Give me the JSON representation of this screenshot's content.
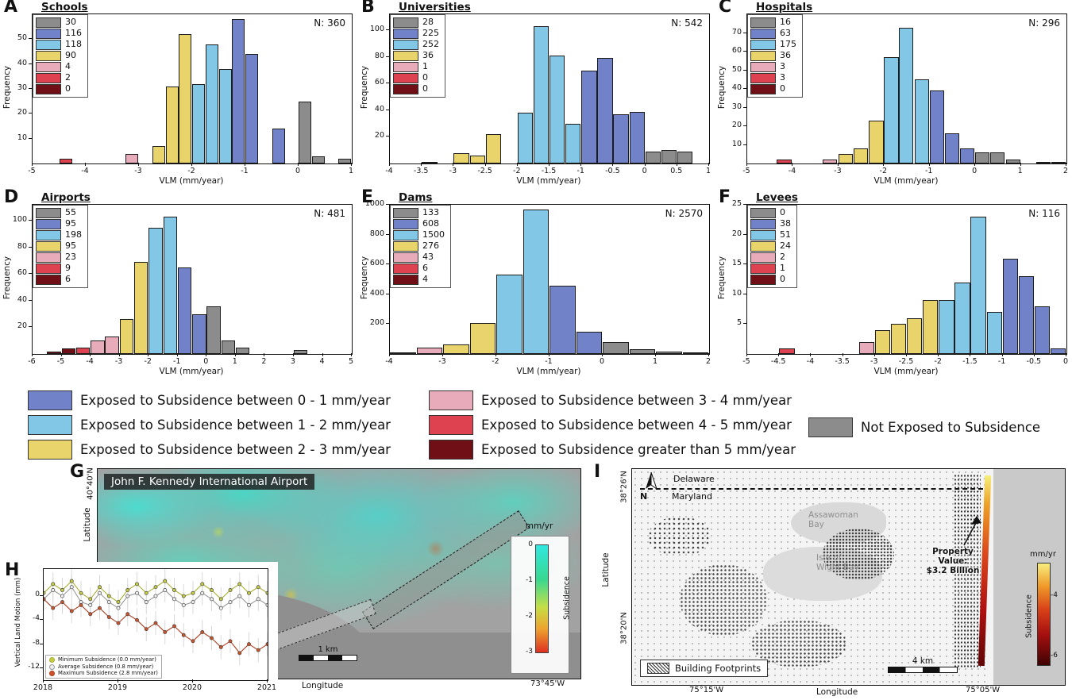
{
  "colors": {
    "gray": "#8c8c8c",
    "blue": "#7182c8",
    "lightblue": "#82c8e6",
    "yellow": "#e9d46c",
    "pink": "#e7abb9",
    "red": "#de4150",
    "darkred": "#701016"
  },
  "chart_data": [
    {
      "type": "bar",
      "panel": "A",
      "title": "Schools",
      "n_label": "N: 360",
      "xlabel": "VLM (mm/year)",
      "ylabel": "Frequency",
      "xlim": [
        -5,
        1
      ],
      "xticks": [
        -5,
        -4,
        -3,
        -2,
        -1,
        0,
        1
      ],
      "ymax": 60,
      "yticks": [
        10,
        20,
        30,
        40,
        50
      ],
      "bin_width": 0.25,
      "legend_counts": [
        [
          "gray",
          "30"
        ],
        [
          "blue",
          "116"
        ],
        [
          "lightblue",
          "118"
        ],
        [
          "yellow",
          "90"
        ],
        [
          "pink",
          "4"
        ],
        [
          "red",
          "2"
        ],
        [
          "darkred",
          "0"
        ]
      ],
      "bars": [
        [
          -4.5,
          2,
          "red"
        ],
        [
          -3.25,
          4,
          "pink"
        ],
        [
          -2.75,
          7,
          "yellow"
        ],
        [
          -2.5,
          31,
          "yellow"
        ],
        [
          -2.25,
          52,
          "yellow"
        ],
        [
          -2,
          32,
          "lightblue"
        ],
        [
          -1.75,
          48,
          "lightblue"
        ],
        [
          -1.5,
          38,
          "lightblue"
        ],
        [
          -1.25,
          58,
          "blue"
        ],
        [
          -1,
          44,
          "blue"
        ],
        [
          -0.5,
          14,
          "blue"
        ],
        [
          0,
          25,
          "gray"
        ],
        [
          0.25,
          3,
          "gray"
        ],
        [
          0.75,
          2,
          "gray"
        ]
      ]
    },
    {
      "type": "bar",
      "panel": "B",
      "title": "Universities",
      "n_label": "N: 542",
      "xlabel": "VLM (mm/year)",
      "ylabel": "Frequency",
      "xlim": [
        -4,
        1
      ],
      "xticks": [
        -4,
        -3.5,
        -3,
        -2.5,
        -2,
        -1.5,
        -1,
        -0.5,
        0,
        0.5,
        1
      ],
      "ymax": 112,
      "yticks": [
        20,
        40,
        60,
        80,
        100
      ],
      "bin_width": 0.25,
      "legend_counts": [
        [
          "gray",
          "28"
        ],
        [
          "blue",
          "225"
        ],
        [
          "lightblue",
          "252"
        ],
        [
          "yellow",
          "36"
        ],
        [
          "pink",
          "1"
        ],
        [
          "red",
          "0"
        ],
        [
          "darkred",
          "0"
        ]
      ],
      "bars": [
        [
          -3.5,
          1,
          "pink"
        ],
        [
          -3,
          8,
          "yellow"
        ],
        [
          -2.75,
          6,
          "yellow"
        ],
        [
          -2.5,
          22,
          "yellow"
        ],
        [
          -2,
          38,
          "lightblue"
        ],
        [
          -1.75,
          103,
          "lightblue"
        ],
        [
          -1.5,
          81,
          "lightblue"
        ],
        [
          -1.25,
          30,
          "lightblue"
        ],
        [
          -1,
          70,
          "blue"
        ],
        [
          -0.75,
          79,
          "blue"
        ],
        [
          -0.5,
          37,
          "blue"
        ],
        [
          -0.25,
          39,
          "blue"
        ],
        [
          0,
          9,
          "gray"
        ],
        [
          0.25,
          10,
          "gray"
        ],
        [
          0.5,
          9,
          "gray"
        ]
      ]
    },
    {
      "type": "bar",
      "panel": "C",
      "title": "Hospitals",
      "n_label": "N: 296",
      "xlabel": "VLM (mm/year)",
      "ylabel": "Frequency",
      "xlim": [
        -5,
        2
      ],
      "xticks": [
        -5,
        -4,
        -3,
        -2,
        -1,
        0,
        1,
        2
      ],
      "ymax": 80,
      "yticks": [
        10,
        20,
        30,
        40,
        50,
        60,
        70
      ],
      "bin_width": 0.33,
      "legend_counts": [
        [
          "gray",
          "16"
        ],
        [
          "blue",
          "63"
        ],
        [
          "lightblue",
          "175"
        ],
        [
          "yellow",
          "36"
        ],
        [
          "pink",
          "3"
        ],
        [
          "red",
          "3"
        ],
        [
          "darkred",
          "0"
        ]
      ],
      "bars": [
        [
          -4.35,
          2,
          "red"
        ],
        [
          -3.35,
          2,
          "pink"
        ],
        [
          -3,
          5,
          "yellow"
        ],
        [
          -2.67,
          8,
          "yellow"
        ],
        [
          -2.33,
          23,
          "yellow"
        ],
        [
          -2,
          57,
          "lightblue"
        ],
        [
          -1.67,
          73,
          "lightblue"
        ],
        [
          -1.33,
          45,
          "lightblue"
        ],
        [
          -1,
          39,
          "blue"
        ],
        [
          -0.67,
          16,
          "blue"
        ],
        [
          -0.33,
          8,
          "blue"
        ],
        [
          0,
          6,
          "gray"
        ],
        [
          0.33,
          6,
          "gray"
        ],
        [
          0.67,
          2,
          "gray"
        ],
        [
          1.33,
          1,
          "gray"
        ],
        [
          1.67,
          1,
          "gray"
        ]
      ]
    },
    {
      "type": "bar",
      "panel": "D",
      "title": "Airports",
      "n_label": "N: 481",
      "xlabel": "VLM (mm/year)",
      "ylabel": "Frequency",
      "xlim": [
        -6,
        5
      ],
      "xticks": [
        -6,
        -5,
        -4,
        -3,
        -2,
        -1,
        0,
        1,
        2,
        3,
        4,
        5
      ],
      "ymax": 112,
      "yticks": [
        20,
        40,
        60,
        80,
        100
      ],
      "bin_width": 0.5,
      "legend_counts": [
        [
          "gray",
          "55"
        ],
        [
          "blue",
          "95"
        ],
        [
          "lightblue",
          "198"
        ],
        [
          "yellow",
          "95"
        ],
        [
          "pink",
          "23"
        ],
        [
          "red",
          "9"
        ],
        [
          "darkred",
          "6"
        ]
      ],
      "bars": [
        [
          -5.5,
          2,
          "darkred"
        ],
        [
          -5,
          4,
          "darkred"
        ],
        [
          -4.5,
          5,
          "red"
        ],
        [
          -4,
          10,
          "pink"
        ],
        [
          -3.5,
          13,
          "pink"
        ],
        [
          -3,
          26,
          "yellow"
        ],
        [
          -2.5,
          69,
          "yellow"
        ],
        [
          -2,
          95,
          "lightblue"
        ],
        [
          -1.5,
          103,
          "lightblue"
        ],
        [
          -1,
          65,
          "blue"
        ],
        [
          -0.5,
          30,
          "blue"
        ],
        [
          0,
          36,
          "gray"
        ],
        [
          0.5,
          10,
          "gray"
        ],
        [
          1,
          5,
          "gray"
        ],
        [
          3,
          3,
          "gray"
        ]
      ]
    },
    {
      "type": "bar",
      "panel": "E",
      "title": "Dams",
      "n_label": "N: 2570",
      "xlabel": "VLM (mm/year)",
      "ylabel": "Frequency",
      "xlim": [
        -4,
        2
      ],
      "xticks": [
        -4,
        -3,
        -2,
        -1,
        0,
        1,
        2
      ],
      "ymax": 1000,
      "yticks": [
        200,
        400,
        600,
        800,
        1000
      ],
      "bin_width": 0.5,
      "legend_counts": [
        [
          "gray",
          "133"
        ],
        [
          "blue",
          "608"
        ],
        [
          "lightblue",
          "1500"
        ],
        [
          "yellow",
          "276"
        ],
        [
          "pink",
          "43"
        ],
        [
          "red",
          "6"
        ],
        [
          "darkred",
          "4"
        ]
      ],
      "bars": [
        [
          -4,
          6,
          "red"
        ],
        [
          -3.5,
          43,
          "pink"
        ],
        [
          -3,
          66,
          "yellow"
        ],
        [
          -2.5,
          210,
          "yellow"
        ],
        [
          -2,
          530,
          "lightblue"
        ],
        [
          -1.5,
          970,
          "lightblue"
        ],
        [
          -1,
          458,
          "blue"
        ],
        [
          -0.5,
          150,
          "blue"
        ],
        [
          0,
          80,
          "gray"
        ],
        [
          0.5,
          33,
          "gray"
        ],
        [
          1,
          15,
          "gray"
        ],
        [
          1.5,
          5,
          "gray"
        ]
      ]
    },
    {
      "type": "bar",
      "panel": "F",
      "title": "Levees",
      "n_label": "N: 116",
      "xlabel": "VLM (mm/year)",
      "ylabel": "Frequency",
      "xlim": [
        -5,
        0
      ],
      "xticks": [
        -5,
        -4.5,
        -4,
        -3.5,
        -3,
        -2.5,
        -2,
        -1.5,
        -1,
        -0.5,
        0
      ],
      "ymax": 25,
      "yticks": [
        5,
        10,
        15,
        20,
        25
      ],
      "bin_width": 0.25,
      "legend_counts": [
        [
          "gray",
          "0"
        ],
        [
          "blue",
          "38"
        ],
        [
          "lightblue",
          "51"
        ],
        [
          "yellow",
          "24"
        ],
        [
          "pink",
          "2"
        ],
        [
          "red",
          "1"
        ],
        [
          "darkred",
          "0"
        ]
      ],
      "bars": [
        [
          -4.5,
          1,
          "red"
        ],
        [
          -3.25,
          2,
          "pink"
        ],
        [
          -3,
          4,
          "yellow"
        ],
        [
          -2.75,
          5,
          "yellow"
        ],
        [
          -2.5,
          6,
          "yellow"
        ],
        [
          -2.25,
          9,
          "yellow"
        ],
        [
          -2,
          9,
          "lightblue"
        ],
        [
          -1.75,
          12,
          "lightblue"
        ],
        [
          -1.5,
          23,
          "lightblue"
        ],
        [
          -1.25,
          7,
          "lightblue"
        ],
        [
          -1,
          16,
          "blue"
        ],
        [
          -0.75,
          13,
          "blue"
        ],
        [
          -0.5,
          8,
          "blue"
        ],
        [
          -0.25,
          1,
          "blue"
        ]
      ]
    },
    {
      "type": "line",
      "panel": "H",
      "ylabel": "Vertical Land Motion (mm)",
      "xlim": [
        2018,
        2021
      ],
      "ylim": [
        4.5,
        -14
      ],
      "yticks": [
        0,
        -4,
        -8,
        -12
      ],
      "xticks": [
        2018,
        2019,
        2020,
        2021
      ],
      "x": [
        2018,
        2018.125,
        2018.25,
        2018.375,
        2018.5,
        2018.625,
        2018.75,
        2018.875,
        2019,
        2019.125,
        2019.25,
        2019.375,
        2019.5,
        2019.625,
        2019.75,
        2019.875,
        2020,
        2020.125,
        2020.25,
        2020.375,
        2020.5,
        2020.625,
        2020.75,
        2020.875,
        2021
      ],
      "series": [
        {
          "name": "Minimum Subsidence (0.0 mm/year)",
          "color": "#c6cc42",
          "line": "#a9af30",
          "y": [
            0.5,
            2,
            1,
            2.5,
            0.5,
            -0.5,
            1.5,
            0,
            -1,
            1,
            2,
            0.5,
            1.5,
            2.5,
            1,
            0,
            0.5,
            2,
            1,
            -0.5,
            1,
            2,
            0.5,
            1.5,
            0.5
          ]
        },
        {
          "name": "Average Subsidence (0.8 mm/year)",
          "color": "#f0f0f0",
          "line": "#999999",
          "y": [
            -0.5,
            1,
            0,
            1.5,
            -1,
            -1.5,
            0.5,
            -1,
            -2,
            0,
            0.5,
            -1,
            0,
            1,
            -0.5,
            -1.5,
            -1,
            0.5,
            -0.5,
            -2,
            -1,
            0,
            -1.5,
            -0.5,
            -1.5
          ]
        },
        {
          "name": "Maximum Subsidence (2.8 mm/year)",
          "color": "#cc5227",
          "line": "#b03d1e",
          "y": [
            -0.5,
            -2,
            -1,
            -2.5,
            -1.5,
            -3,
            -2,
            -3.5,
            -4.5,
            -3,
            -4,
            -5.5,
            -4.5,
            -6,
            -5,
            -6.5,
            -7.5,
            -6,
            -7,
            -8.5,
            -7.5,
            -9.5,
            -8,
            -9,
            -8
          ]
        }
      ]
    }
  ],
  "exposure_legend": {
    "items": [
      {
        "color": "blue",
        "label": "Exposed to Subsidence between 0 - 1 mm/year"
      },
      {
        "color": "lightblue",
        "label": "Exposed to Subsidence between 1 - 2 mm/year"
      },
      {
        "color": "yellow",
        "label": "Exposed to Subsidence between 2 - 3 mm/year"
      },
      {
        "color": "pink",
        "label": "Exposed to Subsidence between 3 - 4 mm/year"
      },
      {
        "color": "red",
        "label": "Exposed to Subsidence between 4 - 5 mm/year"
      },
      {
        "color": "darkred",
        "label": "Exposed to Subsidence greater than 5 mm/year"
      },
      {
        "color": "gray",
        "label": "Not Exposed to Subsidence"
      }
    ]
  },
  "jfk": {
    "id": "G",
    "title": "John F. Kennedy International Airport",
    "ylabel": "Latitude",
    "xlabel": "Longitude",
    "ytick": "40°40'N",
    "xtick": "73°45'W",
    "scalebar": "1 km",
    "colorbar": {
      "title": "mm/yr",
      "label": "Subsidence",
      "ticks": [
        "0",
        "-1",
        "-2",
        "-3"
      ]
    }
  },
  "coast": {
    "id": "I",
    "north": "N",
    "state_top": "Delaware",
    "state_bottom": "Maryland",
    "bay1": "Assawoman Bay",
    "bay2": "Isle of Wight Bay",
    "annotation_line1": "Property Value:",
    "annotation_line2": "$3.2 Billion",
    "footprints_label": "Building Footprints",
    "scalebar": "4 km",
    "ylabel": "Latitude",
    "xlabel": "Longitude",
    "ytick_top": "38°26'N",
    "ytick_bottom": "38°20'N",
    "xtick_left": "75°15'W",
    "xtick_right": "75°05'W",
    "colorbar": {
      "title": "mm/yr",
      "label": "Subsidence",
      "ticks": [
        "-4",
        "-6"
      ]
    }
  }
}
